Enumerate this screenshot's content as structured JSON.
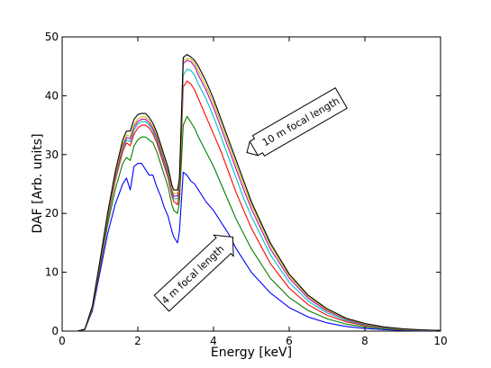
{
  "chart_data": {
    "type": "line",
    "xlabel": "Energy [keV]",
    "ylabel": "DAF [Arb. units]",
    "xlim": [
      0,
      10
    ],
    "ylim": [
      0,
      50
    ],
    "xticks": [
      0,
      2,
      4,
      6,
      8,
      10
    ],
    "yticks": [
      0,
      10,
      20,
      30,
      40,
      50
    ],
    "grid": false,
    "legend": "none",
    "x": [
      0.4,
      0.6,
      0.8,
      1.0,
      1.2,
      1.4,
      1.6,
      1.7,
      1.8,
      1.9,
      2.0,
      2.1,
      2.2,
      2.3,
      2.4,
      2.5,
      2.6,
      2.7,
      2.8,
      2.9,
      2.95,
      3.05,
      3.1,
      3.2,
      3.3,
      3.4,
      3.5,
      3.6,
      3.8,
      4.0,
      4.2,
      4.4,
      4.6,
      4.8,
      5.0,
      5.5,
      6.0,
      6.5,
      7.0,
      7.5,
      8.0,
      8.5,
      9.0,
      9.5,
      10.0
    ],
    "series": [
      {
        "color": "#0000ff",
        "values": [
          0,
          0.3,
          3.5,
          10.0,
          16.5,
          21.5,
          25.0,
          26.0,
          24.0,
          28.0,
          28.5,
          28.5,
          27.5,
          26.5,
          26.5,
          24.5,
          23.0,
          21.0,
          19.5,
          17.0,
          16.0,
          15.0,
          17.0,
          27.0,
          26.5,
          25.5,
          25.0,
          24.0,
          22.0,
          20.5,
          18.5,
          16.5,
          14.0,
          12.0,
          10.0,
          6.5,
          4.0,
          2.4,
          1.4,
          0.8,
          0.45,
          0.25,
          0.13,
          0.07,
          0.03
        ]
      },
      {
        "color": "#008000",
        "values": [
          0,
          0.3,
          3.8,
          10.8,
          18.0,
          24.0,
          28.5,
          29.5,
          29.0,
          31.5,
          32.5,
          33.0,
          33.0,
          32.5,
          32.0,
          30.5,
          28.5,
          26.5,
          24.5,
          21.5,
          20.5,
          20.0,
          22.0,
          35.0,
          36.5,
          35.5,
          34.5,
          33.0,
          30.5,
          28.0,
          25.0,
          22.0,
          19.0,
          16.5,
          14.0,
          9.0,
          5.7,
          3.5,
          2.1,
          1.2,
          0.7,
          0.38,
          0.2,
          0.1,
          0.05
        ]
      },
      {
        "color": "#ff0000",
        "values": [
          0,
          0.3,
          4.0,
          11.2,
          18.8,
          25.5,
          30.5,
          32.0,
          31.5,
          33.5,
          34.5,
          35.0,
          35.0,
          34.5,
          33.5,
          32.0,
          30.0,
          28.0,
          26.0,
          23.0,
          22.0,
          21.5,
          23.5,
          41.5,
          42.5,
          42.0,
          41.0,
          39.5,
          36.5,
          33.5,
          30.5,
          27.0,
          23.5,
          20.5,
          17.5,
          11.5,
          7.3,
          4.5,
          2.7,
          1.6,
          0.9,
          0.5,
          0.26,
          0.14,
          0.07
        ]
      },
      {
        "color": "#00bfbf",
        "values": [
          0,
          0.3,
          4.1,
          11.5,
          19.2,
          26.0,
          31.0,
          32.5,
          32.2,
          34.2,
          35.2,
          35.6,
          35.6,
          35.0,
          34.0,
          32.5,
          30.5,
          28.5,
          26.5,
          23.5,
          22.5,
          22.5,
          24.5,
          43.5,
          44.5,
          44.3,
          43.5,
          42.0,
          39.5,
          36.5,
          33.0,
          29.5,
          26.0,
          22.5,
          19.5,
          13.0,
          8.3,
          5.1,
          3.1,
          1.8,
          1.0,
          0.55,
          0.3,
          0.16,
          0.08
        ]
      },
      {
        "color": "#bf00bf",
        "values": [
          0,
          0.3,
          4.2,
          11.7,
          19.5,
          26.3,
          31.4,
          32.9,
          32.7,
          34.7,
          35.6,
          36.0,
          36.0,
          35.4,
          34.4,
          32.9,
          30.9,
          28.9,
          26.9,
          23.9,
          22.9,
          23.0,
          25.0,
          45.5,
          46.0,
          45.8,
          45.0,
          43.5,
          41.0,
          38.0,
          34.5,
          31.0,
          27.5,
          24.0,
          20.8,
          14.0,
          9.0,
          5.6,
          3.4,
          2.0,
          1.1,
          0.62,
          0.34,
          0.18,
          0.09
        ]
      },
      {
        "color": "#bfbf00",
        "values": [
          0,
          0.3,
          4.2,
          11.8,
          19.7,
          26.6,
          31.8,
          33.3,
          33.1,
          35.1,
          36.0,
          36.4,
          36.4,
          35.8,
          34.8,
          33.3,
          31.3,
          29.3,
          27.3,
          24.3,
          23.3,
          23.5,
          25.5,
          46.0,
          46.3,
          46.2,
          45.5,
          44.2,
          41.7,
          38.8,
          35.3,
          31.8,
          28.3,
          24.8,
          21.5,
          14.6,
          9.4,
          5.9,
          3.6,
          2.1,
          1.2,
          0.66,
          0.36,
          0.19,
          0.1
        ]
      },
      {
        "color": "#000000",
        "values": [
          0,
          0.3,
          4.3,
          12.0,
          20.0,
          27.0,
          32.5,
          34.0,
          34.0,
          36.0,
          36.8,
          37.0,
          37.0,
          36.3,
          35.3,
          33.8,
          31.8,
          29.8,
          27.8,
          24.8,
          24.0,
          24.0,
          26.0,
          46.5,
          47.0,
          46.6,
          46.0,
          45.0,
          42.5,
          39.5,
          36.0,
          32.5,
          29.0,
          25.5,
          22.0,
          15.0,
          9.7,
          6.1,
          3.8,
          2.2,
          1.3,
          0.72,
          0.4,
          0.21,
          0.11
        ]
      }
    ],
    "annotations": [
      {
        "text": "10 m focal length",
        "points_to": [
          4.85,
          30.5
        ]
      },
      {
        "text": "4 m focal length",
        "points_to": [
          4.45,
          16.5
        ]
      }
    ]
  }
}
